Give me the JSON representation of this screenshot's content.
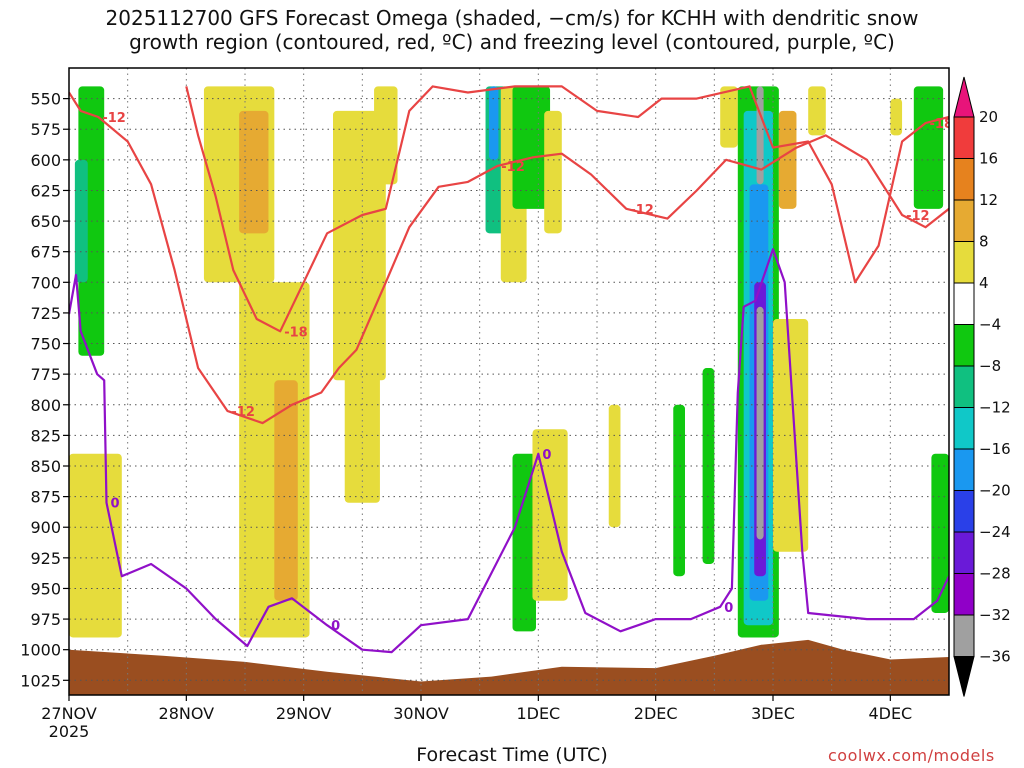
{
  "chart_data": {
    "type": "heatmap",
    "title_lines": [
      "2025112700 GFS Forecast Omega (shaded, −cm/s) for KCHH with dendritic snow",
      "growth region (contoured, red, ºC) and freezing level (contoured, purple, ºC)"
    ],
    "xlabel": "Forecast Time (UTC)",
    "credit": "coolwx.com/models",
    "x_ticks": [
      {
        "day": 0,
        "label": "27NOV",
        "sub": "2025"
      },
      {
        "day": 1,
        "label": "28NOV"
      },
      {
        "day": 2,
        "label": "29NOV"
      },
      {
        "day": 3,
        "label": "30NOV"
      },
      {
        "day": 4,
        "label": "1DEC"
      },
      {
        "day": 5,
        "label": "2DEC"
      },
      {
        "day": 6,
        "label": "3DEC"
      },
      {
        "day": 7,
        "label": "4DEC"
      }
    ],
    "x_range_days": [
      0,
      7.5
    ],
    "y_axis": "pressure_hPa",
    "y_range": [
      1037,
      525
    ],
    "y_ticks": [
      550,
      575,
      600,
      625,
      650,
      675,
      700,
      725,
      750,
      775,
      800,
      825,
      850,
      875,
      900,
      925,
      950,
      975,
      1000,
      1025
    ],
    "grid": true,
    "colorbar": {
      "levels": [
        -36,
        -32,
        -28,
        -24,
        -20,
        -16,
        -12,
        -8,
        -4,
        4,
        8,
        12,
        16,
        20
      ],
      "labels": [
        "20",
        "16",
        "12",
        "8",
        "4",
        "−4",
        "−8",
        "−12",
        "−16",
        "−20",
        "−24",
        "−28",
        "−32",
        "−36"
      ],
      "colors": [
        "#000000",
        "#a0a0a0",
        "#9000c8",
        "#6a1ad8",
        "#2a40e8",
        "#1a98f0",
        "#10c8c8",
        "#10c080",
        "#10c810",
        "#ffffff",
        "#e6dc3c",
        "#e6aa32",
        "#e6821e",
        "#f03c3c",
        "#e8147a"
      ]
    },
    "omega_features": [
      {
        "x0": 0.08,
        "x1": 0.3,
        "p0": 540,
        "p1": 760,
        "value": -6
      },
      {
        "x0": 0.05,
        "x1": 0.16,
        "p0": 600,
        "p1": 700,
        "value": -10
      },
      {
        "x0": 0.0,
        "x1": 0.45,
        "p0": 840,
        "p1": 990,
        "value": 6
      },
      {
        "x0": 1.15,
        "x1": 1.75,
        "p0": 540,
        "p1": 700,
        "value": 6
      },
      {
        "x0": 1.45,
        "x1": 1.7,
        "p0": 560,
        "p1": 660,
        "value": 10
      },
      {
        "x0": 1.45,
        "x1": 2.05,
        "p0": 700,
        "p1": 990,
        "value": 6
      },
      {
        "x0": 1.75,
        "x1": 1.95,
        "p0": 780,
        "p1": 960,
        "value": 10
      },
      {
        "x0": 2.25,
        "x1": 2.7,
        "p0": 560,
        "p1": 780,
        "value": 6
      },
      {
        "x0": 2.35,
        "x1": 2.65,
        "p0": 760,
        "p1": 880,
        "value": 6
      },
      {
        "x0": 2.6,
        "x1": 2.8,
        "p0": 540,
        "p1": 620,
        "value": 6
      },
      {
        "x0": 3.55,
        "x1": 3.75,
        "p0": 540,
        "p1": 660,
        "value": -10
      },
      {
        "x0": 3.58,
        "x1": 3.66,
        "p0": 540,
        "p1": 600,
        "value": -18
      },
      {
        "x0": 3.68,
        "x1": 3.9,
        "p0": 540,
        "p1": 700,
        "value": 6
      },
      {
        "x0": 3.78,
        "x1": 4.1,
        "p0": 540,
        "p1": 640,
        "value": -8
      },
      {
        "x0": 3.78,
        "x1": 3.98,
        "p0": 840,
        "p1": 985,
        "value": -6
      },
      {
        "x0": 3.95,
        "x1": 4.25,
        "p0": 820,
        "p1": 960,
        "value": 6
      },
      {
        "x0": 4.05,
        "x1": 4.2,
        "p0": 560,
        "p1": 660,
        "value": 6
      },
      {
        "x0": 4.6,
        "x1": 4.7,
        "p0": 800,
        "p1": 900,
        "value": 6
      },
      {
        "x0": 5.15,
        "x1": 5.25,
        "p0": 800,
        "p1": 940,
        "value": -6
      },
      {
        "x0": 5.4,
        "x1": 5.5,
        "p0": 770,
        "p1": 930,
        "value": -6
      },
      {
        "x0": 5.55,
        "x1": 5.7,
        "p0": 540,
        "p1": 590,
        "value": 6
      },
      {
        "x0": 5.7,
        "x1": 6.05,
        "p0": 540,
        "p1": 990,
        "value": -8
      },
      {
        "x0": 5.75,
        "x1": 6.0,
        "p0": 560,
        "p1": 980,
        "value": -14
      },
      {
        "x0": 5.8,
        "x1": 5.96,
        "p0": 620,
        "p1": 960,
        "value": -20
      },
      {
        "x0": 5.84,
        "x1": 5.94,
        "p0": 700,
        "p1": 940,
        "value": -26
      },
      {
        "x0": 5.86,
        "x1": 5.92,
        "p0": 540,
        "p1": 620,
        "value": -34
      },
      {
        "x0": 5.86,
        "x1": 5.92,
        "p0": 720,
        "p1": 910,
        "value": -36
      },
      {
        "x0": 6.05,
        "x1": 6.2,
        "p0": 560,
        "p1": 640,
        "value": 10
      },
      {
        "x0": 6.0,
        "x1": 6.3,
        "p0": 730,
        "p1": 920,
        "value": 6
      },
      {
        "x0": 6.3,
        "x1": 6.45,
        "p0": 540,
        "p1": 580,
        "value": 6
      },
      {
        "x0": 7.2,
        "x1": 7.45,
        "p0": 540,
        "p1": 640,
        "value": -8
      },
      {
        "x0": 7.0,
        "x1": 7.1,
        "p0": 550,
        "p1": 580,
        "value": 6
      },
      {
        "x0": 7.35,
        "x1": 7.5,
        "p0": 840,
        "p1": 970,
        "value": -8
      }
    ],
    "contours": {
      "freezing_level": {
        "label": "0",
        "points": [
          [
            0.0,
            726
          ],
          [
            0.06,
            694
          ],
          [
            0.1,
            740
          ],
          [
            0.18,
            760
          ],
          [
            0.24,
            775
          ],
          [
            0.3,
            780
          ],
          [
            0.32,
            880
          ],
          [
            0.45,
            940
          ],
          [
            0.7,
            930
          ],
          [
            1.0,
            950
          ],
          [
            1.25,
            975
          ],
          [
            1.52,
            997
          ],
          [
            1.7,
            965
          ],
          [
            1.9,
            958
          ],
          [
            2.2,
            980
          ],
          [
            2.5,
            1000
          ],
          [
            2.75,
            1002
          ],
          [
            3.0,
            980
          ],
          [
            3.4,
            975
          ],
          [
            3.8,
            900
          ],
          [
            4.0,
            840
          ],
          [
            4.2,
            920
          ],
          [
            4.4,
            970
          ],
          [
            4.7,
            985
          ],
          [
            5.0,
            975
          ],
          [
            5.3,
            975
          ],
          [
            5.55,
            965
          ],
          [
            5.65,
            950
          ],
          [
            5.7,
            790
          ],
          [
            5.75,
            720
          ],
          [
            5.85,
            715
          ],
          [
            6.0,
            673
          ],
          [
            6.1,
            700
          ],
          [
            6.25,
            920
          ],
          [
            6.3,
            970
          ],
          [
            6.8,
            975
          ],
          [
            7.2,
            975
          ],
          [
            7.4,
            960
          ],
          [
            7.5,
            940
          ]
        ]
      },
      "dgz_warm": {
        "label": "-12",
        "points": [
          [
            0.0,
            545
          ],
          [
            0.1,
            560
          ],
          [
            0.25,
            565
          ],
          [
            0.5,
            585
          ],
          [
            0.7,
            620
          ],
          [
            0.9,
            690
          ],
          [
            1.1,
            770
          ],
          [
            1.35,
            805
          ],
          [
            1.65,
            815
          ],
          [
            1.9,
            800
          ],
          [
            2.15,
            790
          ],
          [
            2.3,
            770
          ],
          [
            2.45,
            755
          ],
          [
            2.7,
            700
          ],
          [
            2.9,
            655
          ],
          [
            3.15,
            622
          ],
          [
            3.4,
            618
          ],
          [
            3.65,
            605
          ],
          [
            3.95,
            598
          ],
          [
            4.2,
            595
          ],
          [
            4.45,
            612
          ],
          [
            4.75,
            640
          ],
          [
            5.1,
            648
          ],
          [
            5.35,
            625
          ],
          [
            5.6,
            600
          ],
          [
            5.9,
            608
          ],
          [
            6.2,
            590
          ],
          [
            6.45,
            580
          ],
          [
            6.8,
            600
          ],
          [
            7.1,
            645
          ],
          [
            7.3,
            655
          ],
          [
            7.5,
            640
          ]
        ]
      },
      "dgz_cold": {
        "label": "-18",
        "points": [
          [
            1.0,
            540
          ],
          [
            1.1,
            580
          ],
          [
            1.25,
            630
          ],
          [
            1.4,
            690
          ],
          [
            1.6,
            730
          ],
          [
            1.8,
            740
          ],
          [
            2.0,
            700
          ],
          [
            2.2,
            660
          ],
          [
            2.5,
            645
          ],
          [
            2.7,
            640
          ],
          [
            2.9,
            560
          ],
          [
            3.1,
            540
          ],
          [
            3.4,
            545
          ],
          [
            3.8,
            540
          ],
          [
            4.2,
            540
          ],
          [
            4.5,
            560
          ],
          [
            4.85,
            565
          ],
          [
            5.05,
            550
          ],
          [
            5.35,
            550
          ],
          [
            5.8,
            540
          ],
          [
            6.0,
            590
          ],
          [
            6.3,
            585
          ],
          [
            6.5,
            620
          ],
          [
            6.7,
            700
          ],
          [
            6.9,
            670
          ],
          [
            7.1,
            585
          ],
          [
            7.3,
            570
          ],
          [
            7.5,
            565
          ]
        ]
      }
    }
  }
}
